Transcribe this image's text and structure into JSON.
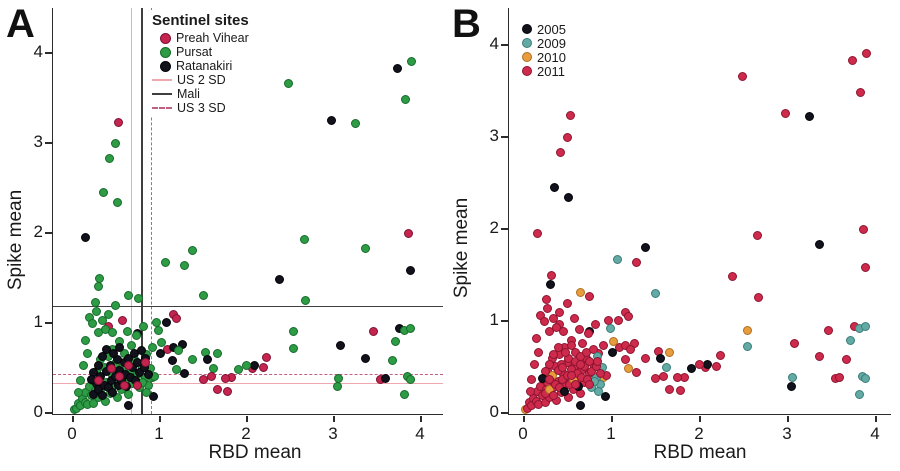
{
  "panels": {
    "a": {
      "label": "A",
      "x_label": "RBD mean",
      "y_label": "Spike mean",
      "legend": {
        "title": "Sentinel sites",
        "sites": [
          {
            "key": "pv",
            "label": "Preah Vihear"
          },
          {
            "key": "pu",
            "label": "Pursat"
          },
          {
            "key": "ra",
            "label": "Ratanakiri"
          }
        ],
        "lines": [
          {
            "label": "US 2 SD",
            "color": "#F0A8B0",
            "dash": false
          },
          {
            "label": "Mali",
            "color": "#3F3F3F",
            "dash": false
          },
          {
            "label": "US 3 SD",
            "color": "#C06080",
            "dash": true
          }
        ]
      }
    },
    "b": {
      "label": "B",
      "x_label": "RBD mean",
      "y_label": "Spike mean",
      "legend": {
        "years": [
          {
            "key": "2005",
            "label": "2005"
          },
          {
            "key": "2009",
            "label": "2009"
          },
          {
            "key": "2010",
            "label": "2010"
          },
          {
            "key": "2011",
            "label": "2011"
          }
        ]
      }
    }
  },
  "chart_data": {
    "type": "scatter",
    "xlabel": "RBD mean",
    "ylabel": "Spike mean",
    "xlim": [
      -0.2,
      4.25
    ],
    "ylim": [
      0,
      4.45
    ],
    "x_ticks": [
      "0",
      "1",
      "2",
      "3",
      "4"
    ],
    "y_ticks": [
      "0",
      "1",
      "2",
      "3",
      "4"
    ],
    "grid": false,
    "panel_a_color_by": "site",
    "panel_b_color_by": "year",
    "site_colors": {
      "pv": {
        "fill": "#C5244F",
        "edge": "#7E1134"
      },
      "pu": {
        "fill": "#2E9C44",
        "edge": "#156B2B"
      },
      "ra": {
        "fill": "#12121C",
        "edge": "#030308"
      }
    },
    "year_colors": {
      "2005": {
        "fill": "#12121C",
        "edge": "#030308"
      },
      "2009": {
        "fill": "#63A9A4",
        "edge": "#3A7D79"
      },
      "2010": {
        "fill": "#E79C3D",
        "edge": "#B06E1D"
      },
      "2011": {
        "fill": "#CE2B4C",
        "edge": "#8E1430"
      }
    },
    "ref_lines_a": {
      "vertical": [
        {
          "label": "US 2 SD",
          "x": 0.68,
          "color": "#F0A8B0",
          "dash": false,
          "w": 1
        },
        {
          "label": "Mali",
          "x": 0.79,
          "color": "#3F3F3F",
          "dash": false,
          "w": 2
        },
        {
          "label": "US 3 SD",
          "x": 0.91,
          "color": "#C06080",
          "dash": true,
          "w": 1.5
        }
      ],
      "horizontal": [
        {
          "label": "Mali",
          "y": 1.18,
          "color": "#3F3F3F",
          "dash": false,
          "w": 1.5
        },
        {
          "label": "US 3 SD",
          "y": 0.42,
          "color": "#C06080",
          "dash": true,
          "w": 1.5
        },
        {
          "label": "US 2 SD",
          "y": 0.32,
          "color": "#F0A8B0",
          "dash": false,
          "w": 1
        }
      ]
    },
    "point_format": [
      "x",
      "y",
      "site",
      "year"
    ],
    "points": [
      [
        0.54,
        3.22,
        "pv",
        2011
      ],
      [
        0.5,
        2.98,
        "pu",
        2011
      ],
      [
        0.43,
        2.82,
        "pu",
        2011
      ],
      [
        0.36,
        2.44,
        "pu",
        2005
      ],
      [
        0.52,
        2.33,
        "pu",
        2005
      ],
      [
        0.16,
        1.94,
        "ra",
        2011
      ],
      [
        2.49,
        3.65,
        "pu",
        2011
      ],
      [
        2.98,
        3.24,
        "ra",
        2011
      ],
      [
        3.26,
        3.21,
        "pu",
        2005
      ],
      [
        3.74,
        3.82,
        "ra",
        2011
      ],
      [
        3.9,
        3.9,
        "pu",
        2011
      ],
      [
        3.83,
        3.47,
        "pu",
        2011
      ],
      [
        0.32,
        1.48,
        "pu",
        2011
      ],
      [
        0.31,
        1.39,
        "pu",
        2005
      ],
      [
        0.65,
        1.3,
        "pu",
        2010
      ],
      [
        0.76,
        1.26,
        "pu",
        2011
      ],
      [
        0.27,
        1.22,
        "pu",
        2011
      ],
      [
        0.5,
        1.18,
        "pu",
        2011
      ],
      [
        1.07,
        1.66,
        "pu",
        2009
      ],
      [
        1.29,
        1.63,
        "pu",
        2011
      ],
      [
        1.39,
        1.79,
        "pu",
        2005
      ],
      [
        1.51,
        1.29,
        "pu",
        2009
      ],
      [
        2.38,
        1.47,
        "ra",
        2011
      ],
      [
        2.67,
        1.92,
        "pu",
        2011
      ],
      [
        2.68,
        1.24,
        "pu",
        2011
      ],
      [
        3.37,
        1.82,
        "pu",
        2005
      ],
      [
        3.87,
        1.98,
        "pv",
        2011
      ],
      [
        3.89,
        1.57,
        "ra",
        2011
      ],
      [
        2.55,
        0.89,
        "pu",
        2010
      ],
      [
        2.55,
        0.71,
        "pu",
        2009
      ],
      [
        1.83,
        0.38,
        "pv",
        2011
      ],
      [
        2.07,
        0.48,
        "pv",
        2011
      ],
      [
        2.1,
        0.52,
        "ra",
        2005
      ],
      [
        2.2,
        0.49,
        "pv",
        2011
      ],
      [
        2.24,
        0.61,
        "pv",
        2011
      ],
      [
        3.09,
        0.74,
        "ra",
        2011
      ],
      [
        3.37,
        0.6,
        "ra",
        2011
      ],
      [
        3.47,
        0.89,
        "pv",
        2011
      ],
      [
        3.77,
        0.93,
        "ra",
        2011
      ],
      [
        3.82,
        0.91,
        "pu",
        2009
      ],
      [
        3.89,
        0.93,
        "pu",
        2009
      ],
      [
        3.72,
        0.78,
        "pu",
        2009
      ],
      [
        3.68,
        0.57,
        "pu",
        2011
      ],
      [
        3.55,
        0.36,
        "pv",
        2011
      ],
      [
        3.6,
        0.37,
        "ra",
        2011
      ],
      [
        3.86,
        0.39,
        "pu",
        2009
      ],
      [
        3.89,
        0.36,
        "pu",
        2009
      ],
      [
        3.82,
        0.19,
        "pu",
        2009
      ],
      [
        3.06,
        0.37,
        "pu",
        2009
      ],
      [
        3.05,
        0.28,
        "pu",
        2005
      ],
      [
        1.17,
        1.08,
        "pv",
        2011
      ],
      [
        1.2,
        1.04,
        "pv",
        2011
      ],
      [
        1.09,
        0.99,
        "ra",
        2011
      ],
      [
        0.97,
        1.0,
        "pu",
        2011
      ],
      [
        0.99,
        0.91,
        "pu",
        2009
      ],
      [
        1.1,
        0.7,
        "pv",
        2011
      ],
      [
        1.17,
        0.72,
        "ra",
        2011
      ],
      [
        1.27,
        0.75,
        "ra",
        2011
      ],
      [
        1.22,
        0.68,
        "pu",
        2011
      ],
      [
        1.16,
        0.57,
        "ra",
        2011
      ],
      [
        1.2,
        0.47,
        "pu",
        2010
      ],
      [
        1.29,
        0.43,
        "ra",
        2011
      ],
      [
        1.39,
        0.58,
        "pu",
        2011
      ],
      [
        1.54,
        0.66,
        "pu",
        2011
      ],
      [
        1.67,
        0.65,
        "pu",
        2010
      ],
      [
        1.56,
        0.58,
        "ra",
        2005
      ],
      [
        1.63,
        0.48,
        "pu",
        2009
      ],
      [
        1.51,
        0.36,
        "pv",
        2011
      ],
      [
        1.6,
        0.39,
        "pv",
        2011
      ],
      [
        1.76,
        0.37,
        "pv",
        2011
      ],
      [
        1.67,
        0.25,
        "pv",
        2011
      ],
      [
        1.79,
        0.23,
        "pv",
        2011
      ],
      [
        1.91,
        0.47,
        "pu",
        2005
      ],
      [
        2.0,
        0.52,
        "pu",
        2011
      ],
      [
        1.02,
        0.65,
        "ra",
        2005
      ],
      [
        0.75,
        0.87,
        "ra",
        2005
      ],
      [
        0.94,
        0.17,
        "ra",
        2005
      ],
      [
        0.65,
        0.07,
        "ra",
        2005
      ],
      [
        0.03,
        0.03,
        "pu",
        2010
      ],
      [
        0.42,
        0.95,
        "pv",
        2011
      ],
      [
        0.58,
        1.02,
        "pv",
        2011
      ],
      [
        0.92,
        0.38,
        "pu",
        2010
      ],
      [
        1.03,
        0.77,
        "pu",
        2010
      ],
      [
        0.05,
        0.04,
        "pu",
        2011
      ],
      [
        0.07,
        0.1,
        "pu",
        2011
      ],
      [
        0.1,
        0.07,
        "pu",
        2011
      ],
      [
        0.12,
        0.15,
        "pu",
        2011
      ],
      [
        0.15,
        0.11,
        "pu",
        2011
      ],
      [
        0.16,
        0.22,
        "pu",
        2011
      ],
      [
        0.18,
        0.08,
        "pu",
        2011
      ],
      [
        0.2,
        0.28,
        "pu",
        2011
      ],
      [
        0.22,
        0.18,
        "pu",
        2011
      ],
      [
        0.24,
        0.35,
        "pu",
        2011
      ],
      [
        0.25,
        0.1,
        "pu",
        2011
      ],
      [
        0.27,
        0.24,
        "pu",
        2011
      ],
      [
        0.28,
        0.45,
        "pu",
        2011
      ],
      [
        0.3,
        0.16,
        "pu",
        2011
      ],
      [
        0.32,
        0.38,
        "pu",
        2011
      ],
      [
        0.33,
        0.58,
        "pu",
        2011
      ],
      [
        0.35,
        0.27,
        "pu",
        2011
      ],
      [
        0.37,
        0.49,
        "pu",
        2011
      ],
      [
        0.38,
        0.12,
        "pu",
        2011
      ],
      [
        0.4,
        0.33,
        "pu",
        2011
      ],
      [
        0.42,
        0.62,
        "pu",
        2011
      ],
      [
        0.44,
        0.21,
        "pu",
        2011
      ],
      [
        0.45,
        0.43,
        "pu",
        2011
      ],
      [
        0.47,
        0.7,
        "pu",
        2011
      ],
      [
        0.48,
        0.3,
        "pu",
        2011
      ],
      [
        0.5,
        0.54,
        "pu",
        2011
      ],
      [
        0.52,
        0.16,
        "pu",
        2011
      ],
      [
        0.54,
        0.38,
        "pu",
        2011
      ],
      [
        0.55,
        0.78,
        "pu",
        2011
      ],
      [
        0.57,
        0.25,
        "pu",
        2011
      ],
      [
        0.58,
        0.5,
        "pu",
        2011
      ],
      [
        0.6,
        0.65,
        "pu",
        2011
      ],
      [
        0.62,
        0.35,
        "pu",
        2011
      ],
      [
        0.64,
        0.9,
        "pu",
        2011
      ],
      [
        0.65,
        0.2,
        "pu",
        2011
      ],
      [
        0.67,
        0.45,
        "pu",
        2011
      ],
      [
        0.68,
        0.74,
        "pu",
        2011
      ],
      [
        0.7,
        0.32,
        "pu",
        2011
      ],
      [
        0.72,
        0.58,
        "pu",
        2011
      ],
      [
        0.74,
        0.85,
        "pu",
        2011
      ],
      [
        0.75,
        0.42,
        "pu",
        2011
      ],
      [
        0.78,
        0.27,
        "pu",
        2009
      ],
      [
        0.8,
        0.52,
        "pu",
        2011
      ],
      [
        0.82,
        0.95,
        "pu",
        2011
      ],
      [
        0.84,
        0.38,
        "pu",
        2009
      ],
      [
        0.86,
        0.64,
        "pu",
        2011
      ],
      [
        0.88,
        0.3,
        "pu",
        2009
      ],
      [
        0.9,
        0.48,
        "pu",
        2009
      ],
      [
        0.81,
        0.33,
        "pu",
        2009
      ],
      [
        0.86,
        0.22,
        "pu",
        2009
      ],
      [
        0.92,
        0.72,
        "pu",
        2011
      ],
      [
        0.95,
        0.4,
        "pu",
        2011
      ],
      [
        0.2,
        1.05,
        "pu",
        2011
      ],
      [
        0.24,
        0.98,
        "pu",
        2011
      ],
      [
        0.28,
        1.12,
        "pu",
        2011
      ],
      [
        0.35,
        1.02,
        "pu",
        2011
      ],
      [
        0.42,
        1.08,
        "pu",
        2011
      ],
      [
        0.3,
        0.88,
        "pu",
        2011
      ],
      [
        0.38,
        0.92,
        "pu",
        2011
      ],
      [
        0.46,
        0.88,
        "pu",
        2011
      ],
      [
        0.15,
        0.8,
        "pu",
        2011
      ],
      [
        0.18,
        0.65,
        "pu",
        2011
      ],
      [
        0.13,
        0.52,
        "pu",
        2011
      ],
      [
        0.1,
        0.35,
        "pu",
        2011
      ],
      [
        0.08,
        0.22,
        "pu",
        2011
      ],
      [
        0.25,
        0.2,
        "ra",
        2011
      ],
      [
        0.28,
        0.32,
        "ra",
        2011
      ],
      [
        0.3,
        0.25,
        "ra",
        2010
      ],
      [
        0.33,
        0.4,
        "ra",
        2010
      ],
      [
        0.35,
        0.18,
        "ra",
        2011
      ],
      [
        0.37,
        0.3,
        "ra",
        2011
      ],
      [
        0.4,
        0.45,
        "ra",
        2011
      ],
      [
        0.42,
        0.27,
        "ra",
        2011
      ],
      [
        0.44,
        0.52,
        "ra",
        2011
      ],
      [
        0.45,
        0.35,
        "ra",
        2011
      ],
      [
        0.47,
        0.22,
        "ra",
        2005
      ],
      [
        0.5,
        0.4,
        "ra",
        2011
      ],
      [
        0.52,
        0.58,
        "ra",
        2011
      ],
      [
        0.53,
        0.3,
        "ra",
        2011
      ],
      [
        0.55,
        0.46,
        "ra",
        2011
      ],
      [
        0.57,
        0.35,
        "ra",
        2010
      ],
      [
        0.6,
        0.55,
        "ra",
        2011
      ],
      [
        0.62,
        0.42,
        "ra",
        2011
      ],
      [
        0.63,
        0.28,
        "ra",
        2005
      ],
      [
        0.65,
        0.6,
        "ra",
        2011
      ],
      [
        0.67,
        0.38,
        "ra",
        2011
      ],
      [
        0.7,
        0.5,
        "ra",
        2011
      ],
      [
        0.72,
        0.65,
        "ra",
        2011
      ],
      [
        0.73,
        0.35,
        "ra",
        2011
      ],
      [
        0.75,
        0.55,
        "ra",
        2011
      ],
      [
        0.78,
        0.44,
        "ra",
        2011
      ],
      [
        0.8,
        0.68,
        "ra",
        2011
      ],
      [
        0.83,
        0.5,
        "ra",
        2011
      ],
      [
        0.85,
        0.6,
        "ra",
        2009
      ],
      [
        0.88,
        0.42,
        "ra",
        2011
      ],
      [
        0.35,
        0.62,
        "ra",
        2011
      ],
      [
        0.3,
        0.52,
        "ra",
        2011
      ],
      [
        0.25,
        0.44,
        "ra",
        2011
      ],
      [
        0.22,
        0.36,
        "ra",
        2005
      ],
      [
        0.48,
        0.65,
        "ra",
        2011
      ],
      [
        0.55,
        0.72,
        "ra",
        2011
      ],
      [
        0.4,
        0.7,
        "ra",
        2011
      ],
      [
        0.3,
        0.35,
        "pv",
        2011
      ],
      [
        0.45,
        0.48,
        "pv",
        2011
      ],
      [
        0.55,
        0.4,
        "pv",
        2011
      ],
      [
        0.65,
        0.52,
        "pv",
        2011
      ],
      [
        0.75,
        0.3,
        "pv",
        2011
      ],
      [
        0.85,
        0.55,
        "pv",
        2011
      ],
      [
        0.6,
        0.3,
        "pv",
        2011
      ]
    ]
  }
}
